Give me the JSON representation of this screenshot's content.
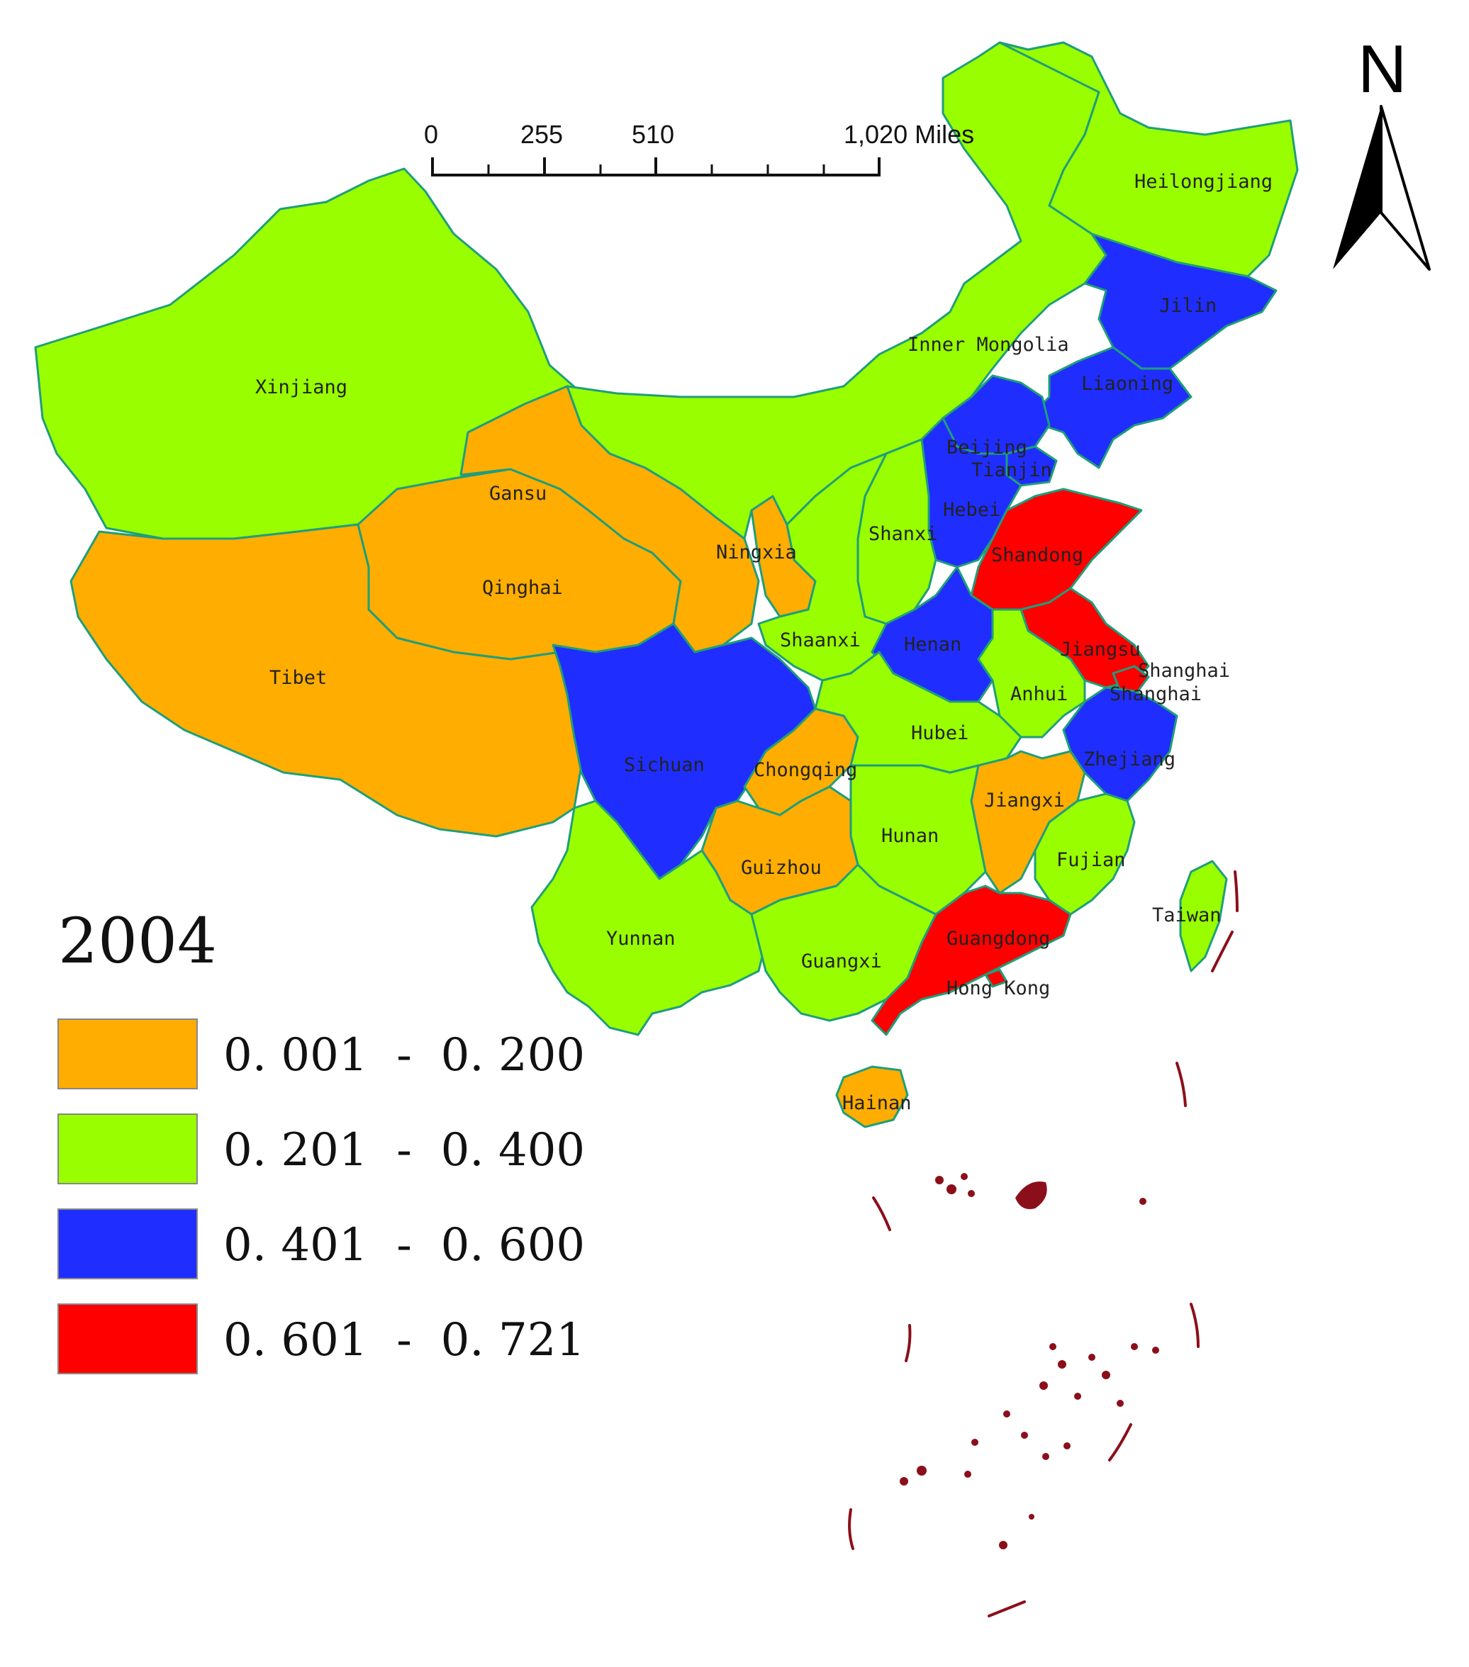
{
  "map": {
    "year": "2004",
    "scale_bar": {
      "ticks": [
        "0",
        "255",
        "510",
        "1,020 Miles"
      ]
    },
    "north_label": "N",
    "colors": {
      "c1": "#ffad00",
      "c2": "#99ff00",
      "c3": "#1f2eff",
      "c4": "#ff0000",
      "border": "#1f9e7a",
      "islands": "#8b0f1a"
    },
    "legend": [
      {
        "label": "0. 001  -  0. 200",
        "color": "#ffad00"
      },
      {
        "label": "0. 201  -  0. 400",
        "color": "#99ff00"
      },
      {
        "label": "0. 401  -  0. 600",
        "color": "#1f2eff"
      },
      {
        "label": "0. 601  -  0. 721",
        "color": "#ff0000"
      }
    ],
    "provinces": [
      {
        "name": "Xinjiang",
        "class": 2
      },
      {
        "name": "Tibet",
        "class": 1
      },
      {
        "name": "Qinghai",
        "class": 1
      },
      {
        "name": "Gansu",
        "class": 1
      },
      {
        "name": "Ningxia",
        "class": 1
      },
      {
        "name": "Inner Mongolia",
        "class": 2
      },
      {
        "name": "Heilongjiang",
        "class": 2
      },
      {
        "name": "Jilin",
        "class": 3
      },
      {
        "name": "Liaoning",
        "class": 3
      },
      {
        "name": "Beijing",
        "class": 3
      },
      {
        "name": "Tianjin",
        "class": 3
      },
      {
        "name": "Hebei",
        "class": 3
      },
      {
        "name": "Shanxi",
        "class": 2
      },
      {
        "name": "Shandong",
        "class": 4
      },
      {
        "name": "Shaanxi",
        "class": 2
      },
      {
        "name": "Henan",
        "class": 3
      },
      {
        "name": "Jiangsu",
        "class": 4
      },
      {
        "name": "Shanghai",
        "class": 4
      },
      {
        "name": "Anhui",
        "class": 2
      },
      {
        "name": "Sichuan",
        "class": 3
      },
      {
        "name": "Chongqing",
        "class": 1
      },
      {
        "name": "Hubei",
        "class": 2
      },
      {
        "name": "Zhejiang",
        "class": 3
      },
      {
        "name": "Jiangxi",
        "class": 1
      },
      {
        "name": "Hunan",
        "class": 2
      },
      {
        "name": "Guizhou",
        "class": 1
      },
      {
        "name": "Fujian",
        "class": 2
      },
      {
        "name": "Taiwan",
        "class": 2
      },
      {
        "name": "Yunnan",
        "class": 2
      },
      {
        "name": "Guangxi",
        "class": 2
      },
      {
        "name": "Guangdong",
        "class": 4
      },
      {
        "name": "Hong Kong",
        "class": 4
      },
      {
        "name": "Hainan",
        "class": 1
      }
    ],
    "extra_labels": [
      "Shanghai"
    ]
  }
}
